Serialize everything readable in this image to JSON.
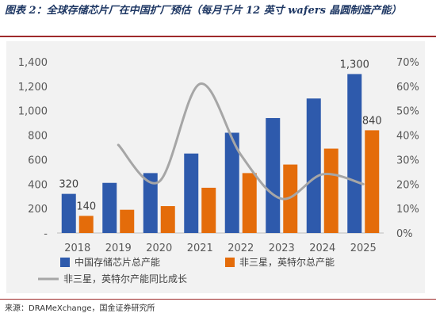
{
  "header": {
    "title": "图表 2：全球存储芯片厂在中国扩厂预估（每月千片 12 英寸 wafers 晶圆制造产能）"
  },
  "footer": {
    "source": "来源：DRAMeXchange，国金证券研究所"
  },
  "colors": {
    "bar_total": "#2e5aac",
    "bar_non_samsung": "#e46c0a",
    "line": "#a6a6a6",
    "panel_bg": "#f2f2f2"
  },
  "chart_data": {
    "type": "bar",
    "title": "",
    "categories": [
      "2018",
      "2019",
      "2020",
      "2021",
      "2022",
      "2023",
      "2024",
      "2025"
    ],
    "series": [
      {
        "name": "中国存储芯片总产能",
        "type": "bar",
        "axis": "left",
        "values": [
          320,
          410,
          490,
          650,
          820,
          940,
          1100,
          1300
        ]
      },
      {
        "name": "非三星，英特尔总产能",
        "type": "bar",
        "axis": "left",
        "values": [
          140,
          190,
          220,
          370,
          490,
          560,
          690,
          840
        ]
      },
      {
        "name": "非三星，英特尔产能同比成长",
        "type": "line",
        "axis": "right",
        "values": [
          null,
          0.36,
          0.21,
          0.61,
          0.32,
          0.14,
          0.24,
          0.2
        ]
      }
    ],
    "data_labels": [
      {
        "series": 0,
        "index": 0,
        "text": "320"
      },
      {
        "series": 1,
        "index": 0,
        "text": "140"
      },
      {
        "series": 0,
        "index": 7,
        "text": "1,300"
      },
      {
        "series": 1,
        "index": 7,
        "text": "840"
      }
    ],
    "y_left": {
      "min": 0,
      "max": 1400,
      "ticks": [
        "-",
        "200",
        "400",
        "600",
        "800",
        "1,000",
        "1,200",
        "1,400"
      ]
    },
    "y_right": {
      "min": 0,
      "max": 0.7,
      "ticks": [
        "0%",
        "10%",
        "20%",
        "30%",
        "40%",
        "50%",
        "60%",
        "70%"
      ]
    },
    "grid": false,
    "legend": "bottom"
  }
}
